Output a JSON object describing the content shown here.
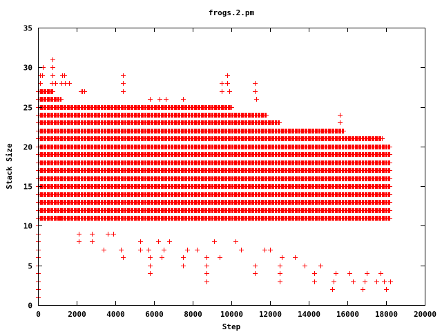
{
  "chart_data": {
    "type": "scatter",
    "title": "frogs.2.pm",
    "xlabel": "Step",
    "ylabel": "Stack Size",
    "xlim": [
      0,
      20000
    ],
    "ylim": [
      0,
      35
    ],
    "x_ticks": [
      0,
      2000,
      4000,
      6000,
      8000,
      10000,
      12000,
      14000,
      16000,
      18000,
      20000
    ],
    "y_ticks": [
      0,
      5,
      10,
      15,
      20,
      25,
      30,
      35
    ],
    "grid": false,
    "legend": "none",
    "marker": "plus",
    "series_color": "#ff0000",
    "x_range_of_data": [
      0,
      18200
    ],
    "dense_bands": [
      {
        "y": 11,
        "x_start": 0,
        "x_end": 18200
      },
      {
        "y": 12,
        "x_start": 0,
        "x_end": 18200
      },
      {
        "y": 13,
        "x_start": 0,
        "x_end": 18200
      },
      {
        "y": 14,
        "x_start": 0,
        "x_end": 18200
      },
      {
        "y": 15,
        "x_start": 0,
        "x_end": 18200
      },
      {
        "y": 16,
        "x_start": 0,
        "x_end": 18200
      },
      {
        "y": 17,
        "x_start": 0,
        "x_end": 18200
      },
      {
        "y": 18,
        "x_start": 0,
        "x_end": 18200
      },
      {
        "y": 19,
        "x_start": 0,
        "x_end": 18200
      },
      {
        "y": 20,
        "x_start": 0,
        "x_end": 18200
      },
      {
        "y": 21,
        "x_start": 0,
        "x_end": 17800
      },
      {
        "y": 22,
        "x_start": 0,
        "x_end": 15800
      },
      {
        "y": 23,
        "x_start": 0,
        "x_end": 12500
      },
      {
        "y": 24,
        "x_start": 0,
        "x_end": 11800
      },
      {
        "y": 25,
        "x_start": 0,
        "x_end": 10000
      },
      {
        "y": 26,
        "x_start": 0,
        "x_end": 1200
      },
      {
        "y": 27,
        "x_start": 0,
        "x_end": 800
      }
    ],
    "points": [
      [
        0,
        1
      ],
      [
        0,
        2
      ],
      [
        0,
        3
      ],
      [
        0,
        4
      ],
      [
        0,
        5
      ],
      [
        0,
        6
      ],
      [
        0,
        7
      ],
      [
        0,
        8
      ],
      [
        0,
        9
      ],
      [
        0,
        10
      ],
      [
        100,
        28
      ],
      [
        100,
        29
      ],
      [
        200,
        29
      ],
      [
        250,
        30
      ],
      [
        750,
        31
      ],
      [
        750,
        30
      ],
      [
        750,
        29
      ],
      [
        700,
        28
      ],
      [
        900,
        28
      ],
      [
        1200,
        28
      ],
      [
        1250,
        29
      ],
      [
        1350,
        29
      ],
      [
        1400,
        28
      ],
      [
        1600,
        28
      ],
      [
        1100,
        11
      ],
      [
        700,
        12
      ],
      [
        2100,
        8
      ],
      [
        2100,
        9
      ],
      [
        2200,
        27
      ],
      [
        2300,
        27
      ],
      [
        2400,
        27
      ],
      [
        2800,
        8
      ],
      [
        2800,
        9
      ],
      [
        3400,
        7
      ],
      [
        3600,
        9
      ],
      [
        3900,
        9
      ],
      [
        4400,
        29
      ],
      [
        4400,
        28
      ],
      [
        4400,
        27
      ],
      [
        4400,
        6
      ],
      [
        4300,
        7
      ],
      [
        5300,
        7
      ],
      [
        5300,
        8
      ],
      [
        5800,
        4
      ],
      [
        5800,
        5
      ],
      [
        5800,
        6
      ],
      [
        5700,
        7
      ],
      [
        6200,
        8
      ],
      [
        6400,
        6
      ],
      [
        6500,
        7
      ],
      [
        6800,
        8
      ],
      [
        5800,
        26
      ],
      [
        6300,
        26
      ],
      [
        6600,
        26
      ],
      [
        7500,
        26
      ],
      [
        7500,
        5
      ],
      [
        7500,
        6
      ],
      [
        7700,
        7
      ],
      [
        8200,
        7
      ],
      [
        8700,
        3
      ],
      [
        8700,
        4
      ],
      [
        8700,
        5
      ],
      [
        8700,
        6
      ],
      [
        9100,
        8
      ],
      [
        9400,
        6
      ],
      [
        9500,
        28
      ],
      [
        9500,
        27
      ],
      [
        9800,
        29
      ],
      [
        9800,
        28
      ],
      [
        9900,
        27
      ],
      [
        10200,
        8
      ],
      [
        10500,
        7
      ],
      [
        11200,
        4
      ],
      [
        11200,
        5
      ],
      [
        11200,
        28
      ],
      [
        11200,
        27
      ],
      [
        11300,
        26
      ],
      [
        11700,
        7
      ],
      [
        12000,
        7
      ],
      [
        12500,
        3
      ],
      [
        12500,
        4
      ],
      [
        12500,
        5
      ],
      [
        12600,
        6
      ],
      [
        13300,
        6
      ],
      [
        13800,
        5
      ],
      [
        14300,
        3
      ],
      [
        14300,
        4
      ],
      [
        14600,
        5
      ],
      [
        15200,
        2
      ],
      [
        15300,
        3
      ],
      [
        15400,
        4
      ],
      [
        15600,
        24
      ],
      [
        15600,
        23
      ],
      [
        16100,
        4
      ],
      [
        16300,
        3
      ],
      [
        16800,
        2
      ],
      [
        16900,
        3
      ],
      [
        17000,
        4
      ],
      [
        17500,
        3
      ],
      [
        17700,
        4
      ],
      [
        17900,
        3
      ],
      [
        18000,
        2
      ],
      [
        18200,
        3
      ]
    ]
  }
}
